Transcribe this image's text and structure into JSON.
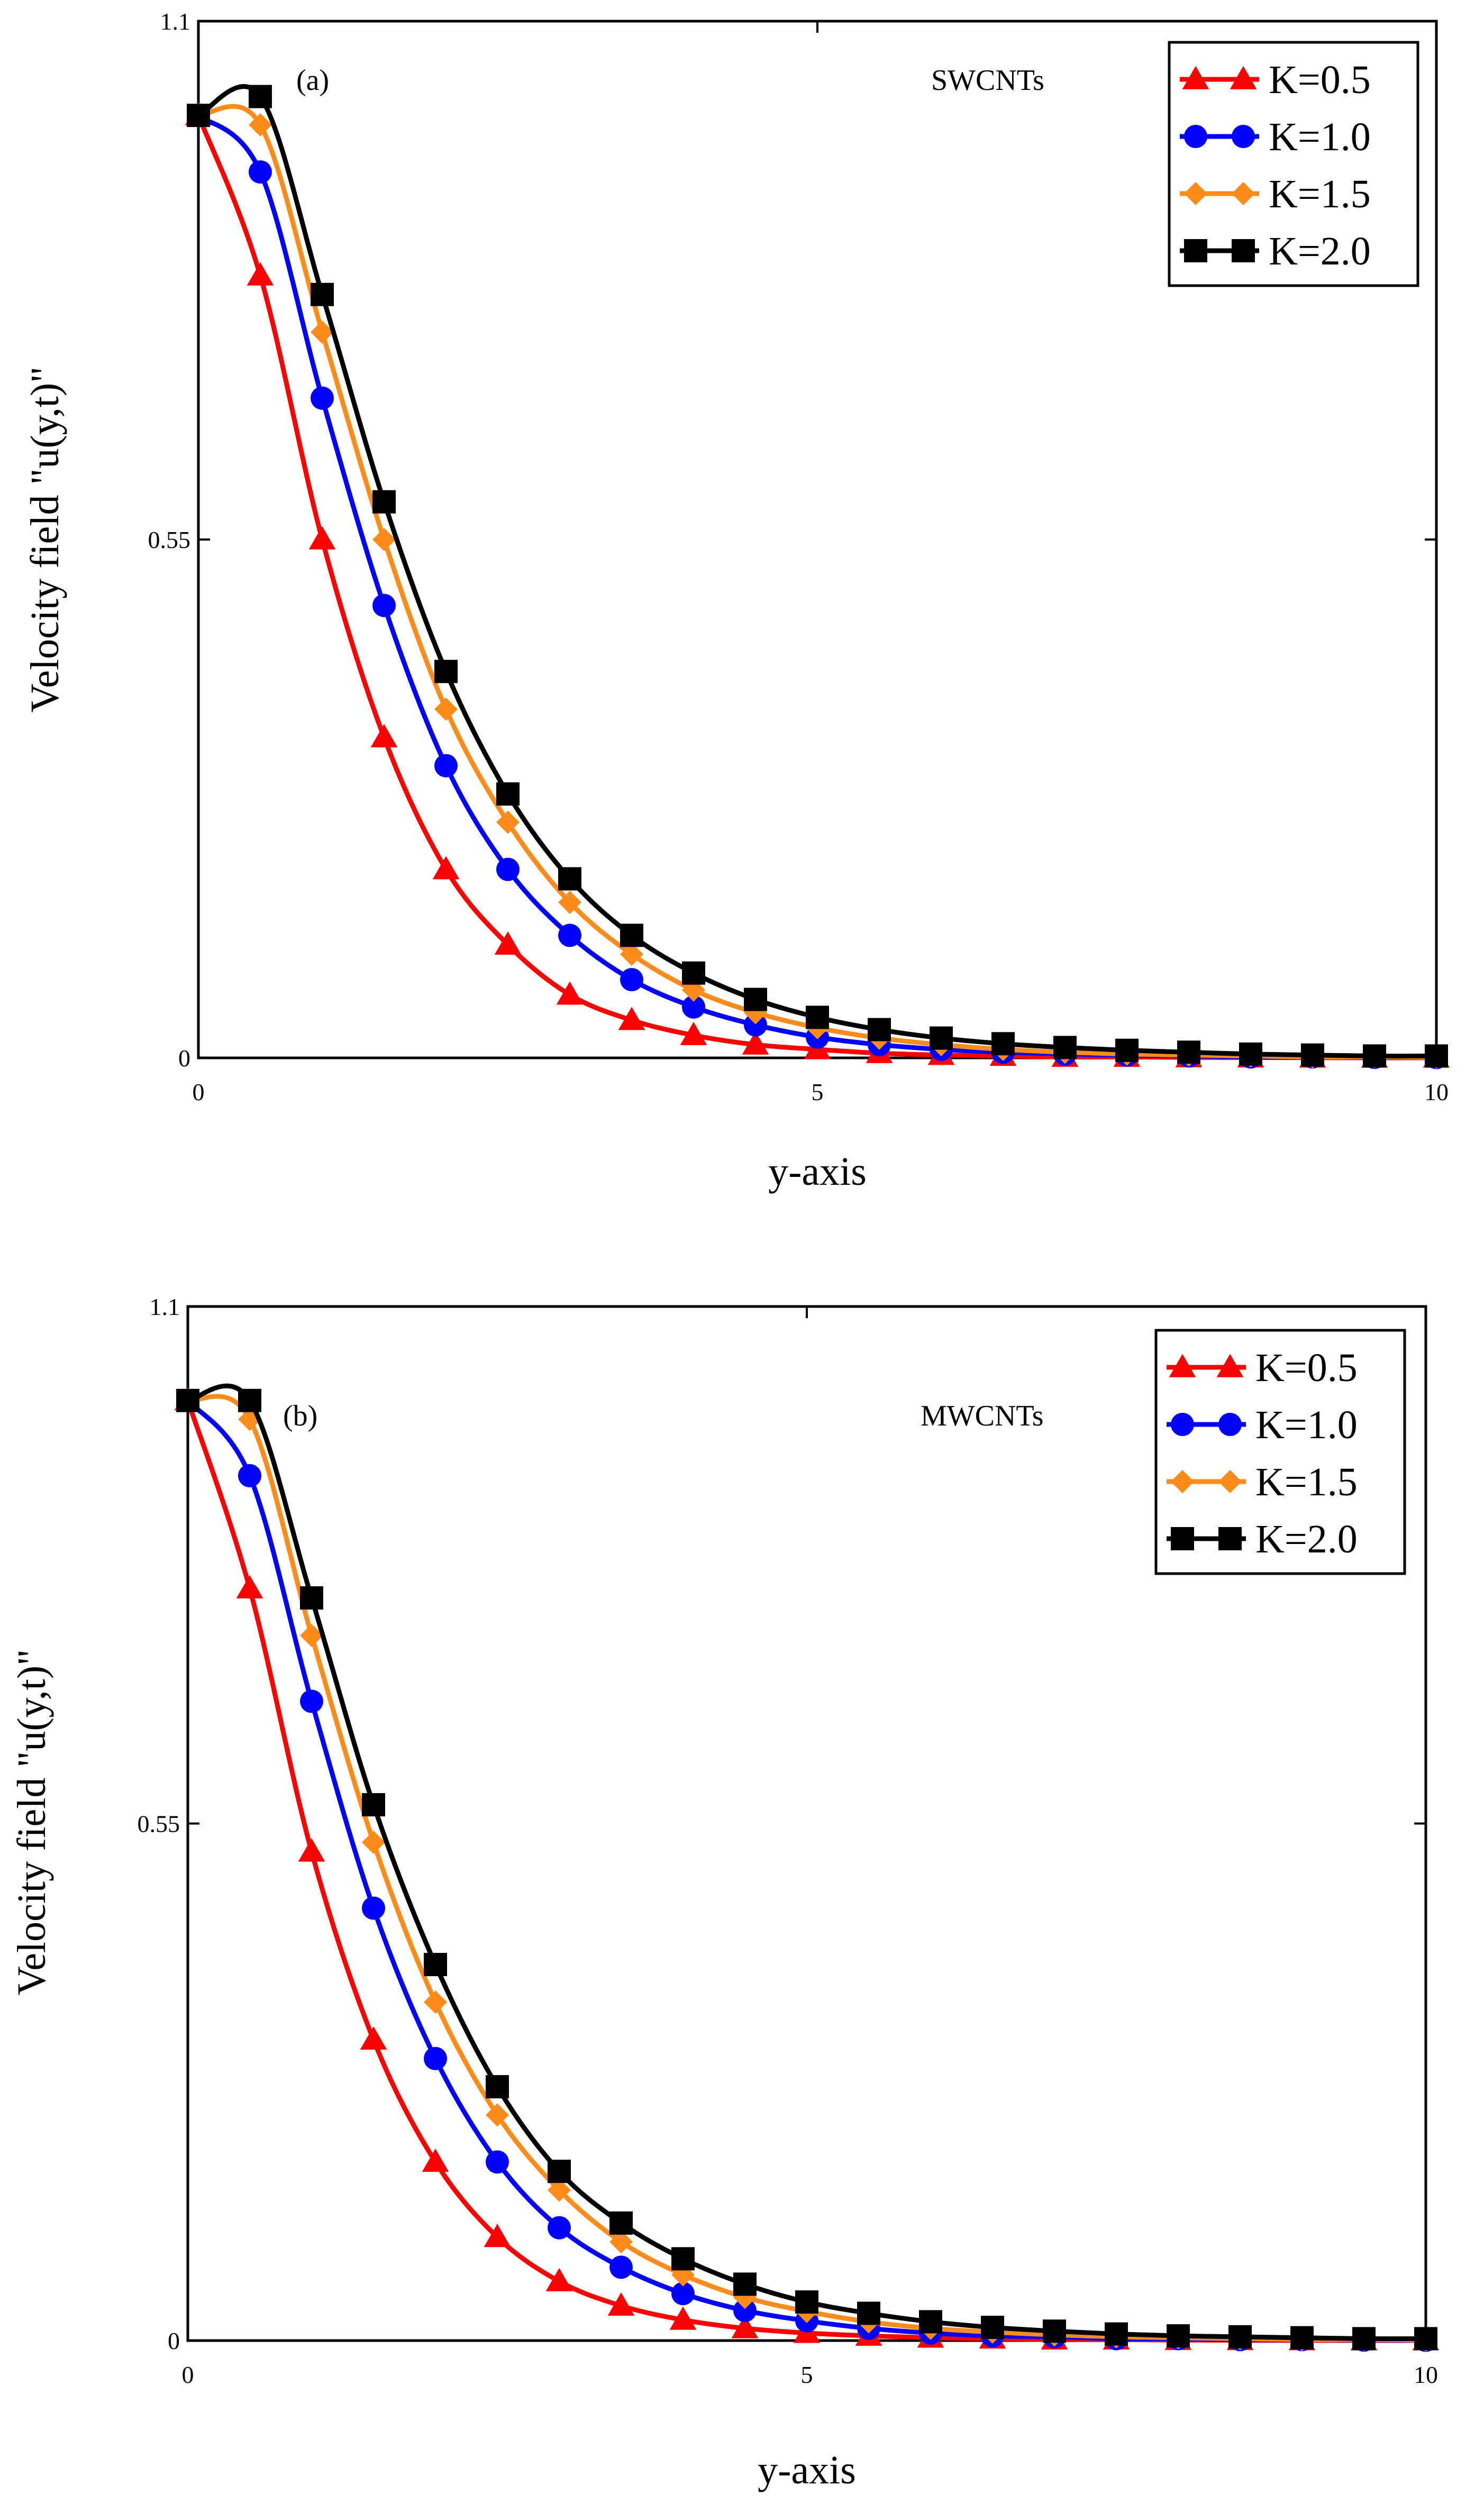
{
  "chart_data": [
    {
      "type": "line",
      "panel_label": "(a)",
      "annotation": "SWCNTs",
      "xlabel": "y-axis",
      "ylabel": "Velocity field \"u(y,t)\"",
      "xlim": [
        0,
        10
      ],
      "ylim": [
        0,
        1.1
      ],
      "x_ticks": [
        0,
        5,
        10
      ],
      "x_tick_labels": [
        "0",
        "5",
        "10"
      ],
      "y_ticks": [
        0,
        0.55,
        1.1
      ],
      "y_tick_labels": [
        "0",
        "0.55",
        "1.1"
      ],
      "legend_location": "top-right",
      "x": [
        0,
        0.5,
        1,
        1.5,
        2,
        2.5,
        3,
        3.5,
        4,
        4.5,
        5,
        5.5,
        6,
        6.5,
        7,
        7.5,
        8,
        8.5,
        9,
        9.5,
        10
      ],
      "series": [
        {
          "name": "K=0.5",
          "color": "#ff0000",
          "marker": "triangle",
          "values": [
            1.0,
            0.83,
            0.55,
            0.34,
            0.2,
            0.12,
            0.067,
            0.04,
            0.024,
            0.014,
            0.009,
            0.005,
            0.003,
            0.002,
            0.001,
            0.001,
            0.0005,
            0.0003,
            0.0002,
            0.0001,
            0.0001
          ]
        },
        {
          "name": "K=1.0",
          "color": "#0000ff",
          "marker": "circle",
          "values": [
            1.0,
            0.94,
            0.7,
            0.48,
            0.31,
            0.2,
            0.13,
            0.083,
            0.054,
            0.035,
            0.022,
            0.014,
            0.009,
            0.006,
            0.004,
            0.003,
            0.002,
            0.001,
            0.001,
            0.0005,
            0.0003
          ]
        },
        {
          "name": "K=1.5",
          "color": "#ff8c1a",
          "marker": "diamond",
          "values": [
            1.0,
            0.99,
            0.77,
            0.55,
            0.37,
            0.25,
            0.165,
            0.11,
            0.072,
            0.048,
            0.032,
            0.021,
            0.014,
            0.009,
            0.006,
            0.004,
            0.003,
            0.002,
            0.001,
            0.001,
            0.0005
          ]
        },
        {
          "name": "K=2.0",
          "color": "#000000",
          "marker": "square",
          "values": [
            1.0,
            1.02,
            0.81,
            0.59,
            0.41,
            0.28,
            0.19,
            0.13,
            0.09,
            0.062,
            0.043,
            0.03,
            0.021,
            0.015,
            0.011,
            0.008,
            0.006,
            0.004,
            0.003,
            0.002,
            0.002
          ]
        }
      ]
    },
    {
      "type": "line",
      "panel_label": "(b)",
      "annotation": "MWCNTs",
      "xlabel": "y-axis",
      "ylabel": "Velocity field \"u(y,t)\"",
      "xlim": [
        0,
        10
      ],
      "ylim": [
        0,
        1.1
      ],
      "x_ticks": [
        0,
        5,
        10
      ],
      "x_tick_labels": [
        "0",
        "5",
        "10"
      ],
      "y_ticks": [
        0,
        0.55,
        1.1
      ],
      "y_tick_labels": [
        "0",
        "0.55",
        "1.1"
      ],
      "legend_location": "top-right",
      "x": [
        0,
        0.5,
        1,
        1.5,
        2,
        2.5,
        3,
        3.5,
        4,
        4.5,
        5,
        5.5,
        6,
        6.5,
        7,
        7.5,
        8,
        8.5,
        9,
        9.5,
        10
      ],
      "series": [
        {
          "name": "K=0.5",
          "color": "#ff0000",
          "marker": "triangle",
          "values": [
            1.0,
            0.8,
            0.52,
            0.32,
            0.19,
            0.11,
            0.063,
            0.037,
            0.022,
            0.013,
            0.008,
            0.005,
            0.003,
            0.002,
            0.001,
            0.001,
            0.0005,
            0.0003,
            0.0002,
            0.0001,
            0.0001
          ]
        },
        {
          "name": "K=1.0",
          "color": "#0000ff",
          "marker": "circle",
          "values": [
            1.0,
            0.92,
            0.68,
            0.46,
            0.3,
            0.19,
            0.12,
            0.078,
            0.05,
            0.032,
            0.021,
            0.013,
            0.008,
            0.005,
            0.004,
            0.002,
            0.002,
            0.001,
            0.001,
            0.0005,
            0.0003
          ]
        },
        {
          "name": "K=1.5",
          "color": "#ff8c1a",
          "marker": "diamond",
          "values": [
            1.0,
            0.98,
            0.75,
            0.53,
            0.36,
            0.24,
            0.16,
            0.105,
            0.07,
            0.046,
            0.031,
            0.02,
            0.013,
            0.009,
            0.006,
            0.004,
            0.003,
            0.002,
            0.001,
            0.001,
            0.0005
          ]
        },
        {
          "name": "K=2.0",
          "color": "#000000",
          "marker": "square",
          "values": [
            1.0,
            1.0,
            0.79,
            0.57,
            0.4,
            0.27,
            0.18,
            0.125,
            0.087,
            0.06,
            0.041,
            0.029,
            0.02,
            0.014,
            0.01,
            0.007,
            0.005,
            0.004,
            0.003,
            0.002,
            0.002
          ]
        }
      ]
    }
  ]
}
